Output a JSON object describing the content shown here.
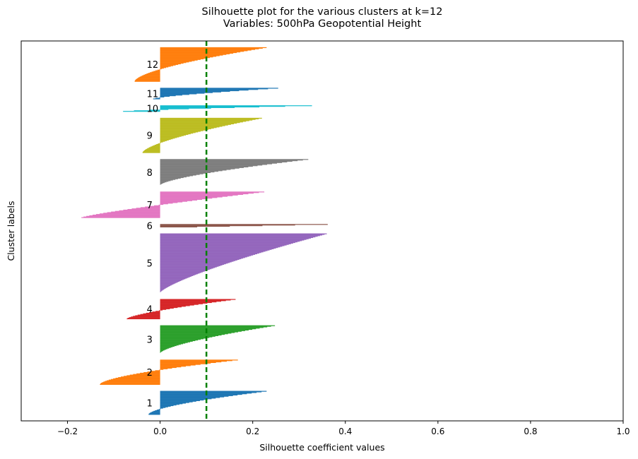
{
  "chart_data": {
    "type": "bar",
    "orientation": "horizontal",
    "title": "Silhouette plot for the various clusters at k=12",
    "subtitle": "Variables: 500hPa Geopotential Height",
    "xlabel": "Silhouette coefficient values",
    "ylabel": "Cluster labels",
    "xlim": [
      -0.3,
      1.0
    ],
    "xticks": [
      "−0.2",
      "0.0",
      "0.2",
      "0.4",
      "0.6",
      "0.8",
      "1.0"
    ],
    "xtick_values": [
      -0.2,
      0.0,
      0.2,
      0.4,
      0.6,
      0.8,
      1.0
    ],
    "reference_line": {
      "x": 0.1,
      "color": "#008000",
      "style": "dashed"
    },
    "grid": false,
    "clusters": [
      {
        "label": "1",
        "color": "#1f77b4",
        "size": 38,
        "max": 0.23,
        "min": -0.025,
        "curve": 1.6
      },
      {
        "label": "2",
        "color": "#ff7f0e",
        "size": 40,
        "max": 0.168,
        "min": -0.13,
        "curve": 1.6
      },
      {
        "label": "3",
        "color": "#2ca02c",
        "size": 45,
        "max": 0.248,
        "min": 0.0,
        "curve": 1.5
      },
      {
        "label": "4",
        "color": "#d62728",
        "size": 32,
        "max": 0.163,
        "min": -0.072,
        "curve": 1.4
      },
      {
        "label": "5",
        "color": "#9467bd",
        "size": 95,
        "max": 0.36,
        "min": 0.0,
        "curve": 1.3
      },
      {
        "label": "6",
        "color": "#8c564b",
        "size": 5,
        "max": 0.362,
        "min": 0.08,
        "curve": 1.0
      },
      {
        "label": "7",
        "color": "#e377c2",
        "size": 42,
        "max": 0.225,
        "min": -0.17,
        "curve": 1.2
      },
      {
        "label": "8",
        "color": "#7f7f7f",
        "size": 42,
        "max": 0.32,
        "min": 0.0,
        "curve": 1.5
      },
      {
        "label": "9",
        "color": "#bcbd22",
        "size": 56,
        "max": 0.22,
        "min": -0.038,
        "curve": 1.5
      },
      {
        "label": "10",
        "color": "#17becf",
        "size": 10,
        "max": 0.328,
        "min": -0.08,
        "curve": 1.3
      },
      {
        "label": "11",
        "color": "#1f77b4",
        "size": 18,
        "max": 0.255,
        "min": -0.015,
        "curve": 1.4
      },
      {
        "label": "12",
        "color": "#ff7f0e",
        "size": 55,
        "max": 0.23,
        "min": -0.055,
        "curve": 1.6
      }
    ]
  }
}
